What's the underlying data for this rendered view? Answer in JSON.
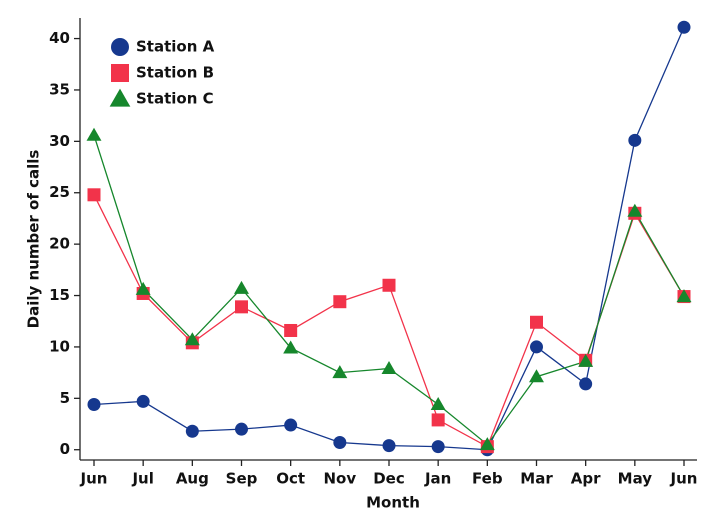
{
  "chart_data": {
    "type": "line",
    "x_label": "Month",
    "y_label": "Daily number of calls",
    "categories": [
      "Jun",
      "Jul",
      "Aug",
      "Sep",
      "Oct",
      "Nov",
      "Dec",
      "Jan",
      "Feb",
      "Mar",
      "Apr",
      "May",
      "Jun"
    ],
    "series": [
      {
        "name": "Station A",
        "color": "#16388e",
        "marker": "circle",
        "values": [
          4.4,
          4.7,
          1.8,
          2.0,
          2.4,
          0.7,
          0.4,
          0.3,
          0.0,
          10.0,
          6.4,
          30.1,
          41.1
        ]
      },
      {
        "name": "Station B",
        "color": "#f2334a",
        "marker": "square",
        "values": [
          24.8,
          15.2,
          10.4,
          13.9,
          11.6,
          14.4,
          16.0,
          2.9,
          0.3,
          12.4,
          8.7,
          23.0,
          14.9
        ]
      },
      {
        "name": "Station C",
        "color": "#16872c",
        "marker": "triangle",
        "values": [
          30.6,
          15.6,
          10.7,
          15.7,
          9.9,
          7.5,
          7.9,
          4.4,
          0.5,
          7.1,
          8.6,
          23.2,
          14.9
        ]
      }
    ],
    "ylim": [
      -1,
      42
    ],
    "yticks": [
      0,
      5,
      10,
      15,
      20,
      25,
      30,
      35,
      40
    ],
    "grid": false,
    "legend": "top-left"
  }
}
